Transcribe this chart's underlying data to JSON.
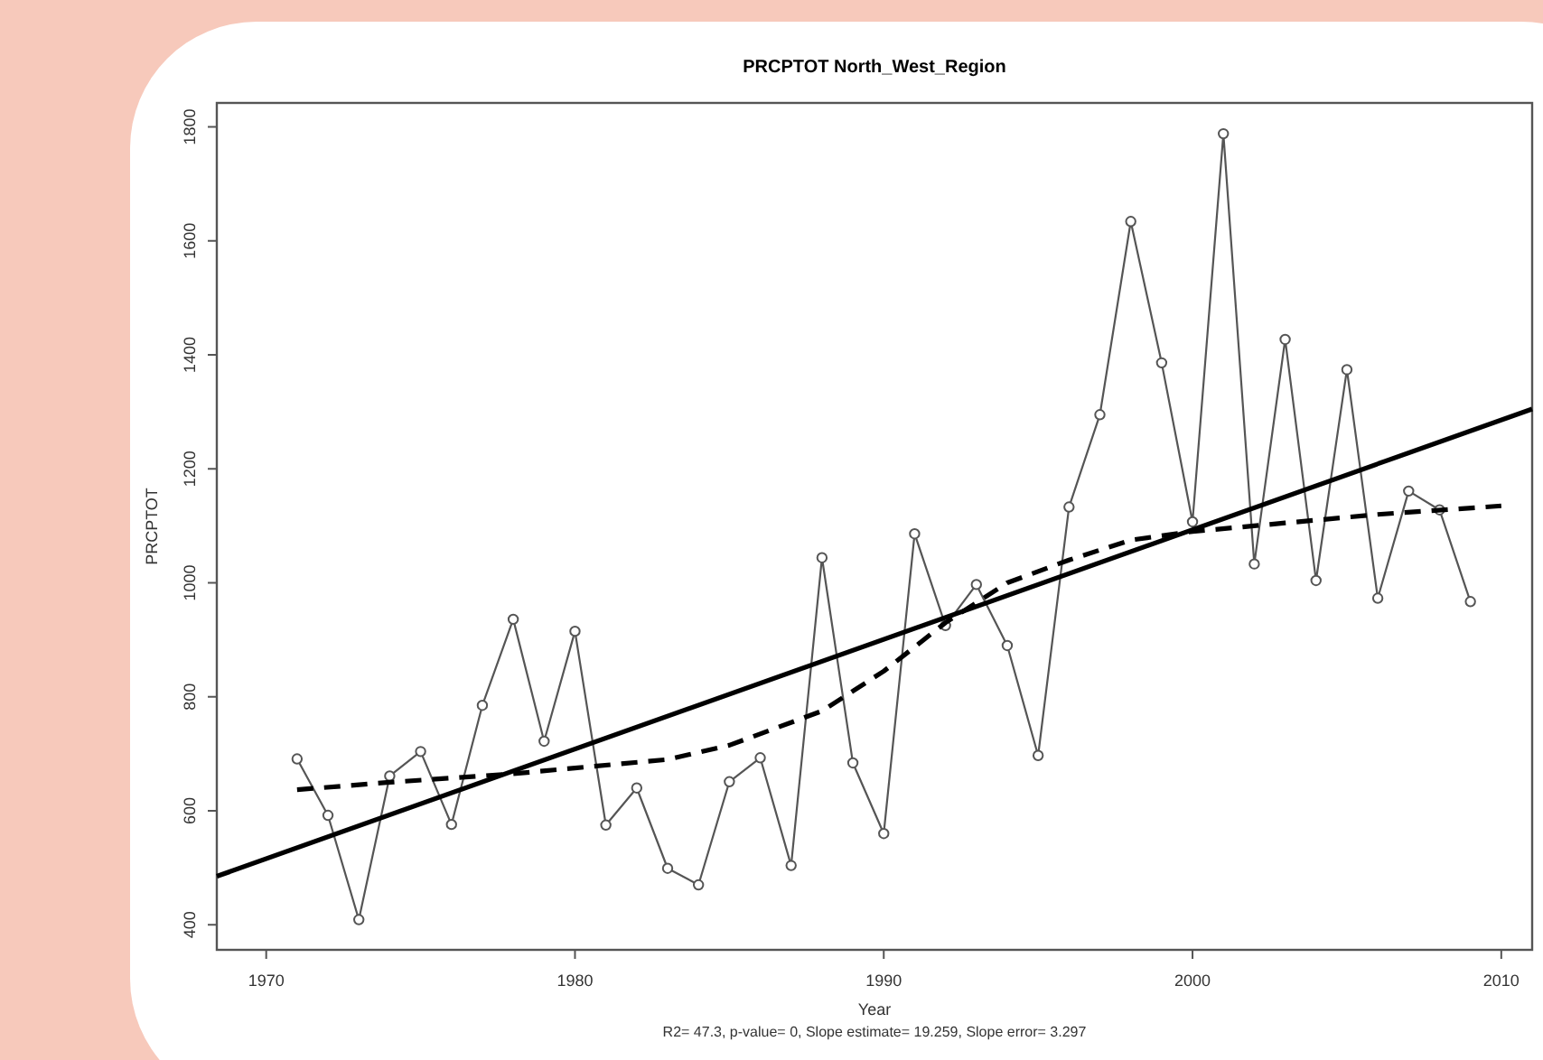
{
  "chart_data": {
    "type": "line",
    "title": "PRCPTOT   North_West_Region",
    "xlabel": "Year",
    "ylabel": "PRCPTOT",
    "annotations": [
      "R2= 47.3, p-value= 0, Slope estimate= 19.259, Slope error= 3.297"
    ],
    "xlim": [
      1968.4,
      2011
    ],
    "xticks": [
      1970,
      1980,
      1990,
      2000,
      2010
    ],
    "ylim": [
      356,
      1842
    ],
    "yticks": [
      400,
      600,
      800,
      1000,
      1200,
      1400,
      1600,
      1800
    ],
    "grid": false,
    "series": [
      {
        "color": "#555555",
        "marker": "circle",
        "line_style": "solid",
        "x": [
          1971,
          1972,
          1973,
          1974,
          1975,
          1976,
          1977,
          1978,
          1979,
          1980,
          1981,
          1982,
          1983,
          1984,
          1985,
          1986,
          1987,
          1988,
          1989,
          1990,
          1991,
          1992,
          1993,
          1994,
          1995,
          1996,
          1997,
          1998,
          1999,
          2000,
          2001,
          2002,
          2003,
          2004,
          2005,
          2006,
          2007,
          2008,
          2009
        ],
        "values": [
          691,
          592,
          409,
          661,
          704,
          576,
          785,
          936,
          722,
          915,
          575,
          640,
          499,
          470,
          651,
          693,
          504,
          1044,
          684,
          560,
          1086,
          925,
          997,
          890,
          697,
          1133,
          1295,
          1634,
          1386,
          1107,
          1788,
          1033,
          1427,
          1004,
          1374,
          973,
          1161,
          1128,
          967
        ]
      },
      {
        "color": "#000000",
        "marker": "none",
        "line_style": "solid",
        "x": [
          1968.4,
          2011
        ],
        "values": [
          485,
          1305
        ]
      },
      {
        "color": "#000000",
        "marker": "none",
        "line_style": "dashed",
        "x": [
          1971,
          1974,
          1978,
          1980,
          1983,
          1985,
          1988,
          1990,
          1992,
          1994,
          1996,
          1998,
          2000,
          2003,
          2006,
          2010
        ],
        "values": [
          637,
          650,
          665,
          675,
          690,
          715,
          775,
          845,
          930,
          1000,
          1040,
          1075,
          1090,
          1105,
          1120,
          1135
        ]
      }
    ]
  }
}
